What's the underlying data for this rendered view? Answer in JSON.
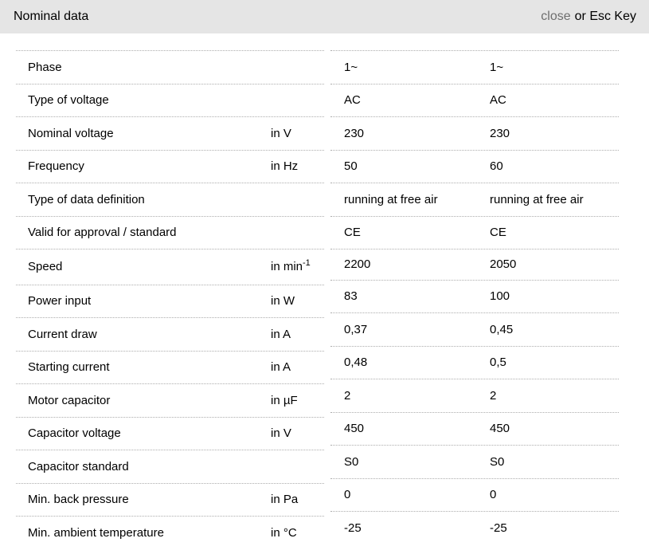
{
  "header": {
    "title": "Nominal data",
    "close_label": "close",
    "close_suffix": "or Esc Key"
  },
  "colors": {
    "header_bg": "#e5e5e5",
    "close_link": "#6e6e6e",
    "divider": "#adadad",
    "text": "#000000"
  },
  "table": {
    "rows": [
      {
        "label": "Phase",
        "unit": "",
        "values": [
          "1~",
          "1~"
        ]
      },
      {
        "label": "Type of voltage",
        "unit": "",
        "values": [
          "AC",
          "AC"
        ]
      },
      {
        "label": "Nominal voltage",
        "unit": "in V",
        "values": [
          "230",
          "230"
        ]
      },
      {
        "label": "Frequency",
        "unit": "in Hz",
        "values": [
          "50",
          "60"
        ]
      },
      {
        "label": "Type of data definition",
        "unit": "",
        "values": [
          "running at free air",
          "running at free air"
        ]
      },
      {
        "label": "Valid for approval / standard",
        "unit": "",
        "values": [
          "CE",
          "CE"
        ]
      },
      {
        "label": "Speed",
        "unit": "in min",
        "unit_sup": "-1",
        "values": [
          "2200",
          "2050"
        ]
      },
      {
        "label": "Power input",
        "unit": "in W",
        "values": [
          "83",
          "100"
        ]
      },
      {
        "label": "Current draw",
        "unit": "in A",
        "values": [
          "0,37",
          "0,45"
        ]
      },
      {
        "label": "Starting current",
        "unit": "in A",
        "values": [
          "0,48",
          "0,5"
        ]
      },
      {
        "label": "Motor capacitor",
        "unit": "in µF",
        "values": [
          "2",
          "2"
        ]
      },
      {
        "label": "Capacitor voltage",
        "unit": "in V",
        "values": [
          "450",
          "450"
        ]
      },
      {
        "label": "Capacitor standard",
        "unit": "",
        "values": [
          "S0",
          "S0"
        ]
      },
      {
        "label": "Min. back pressure",
        "unit": "in Pa",
        "values": [
          "0",
          "0"
        ]
      },
      {
        "label": "Min. ambient temperature",
        "unit": "in °C",
        "values": [
          "-25",
          "-25"
        ]
      }
    ]
  }
}
